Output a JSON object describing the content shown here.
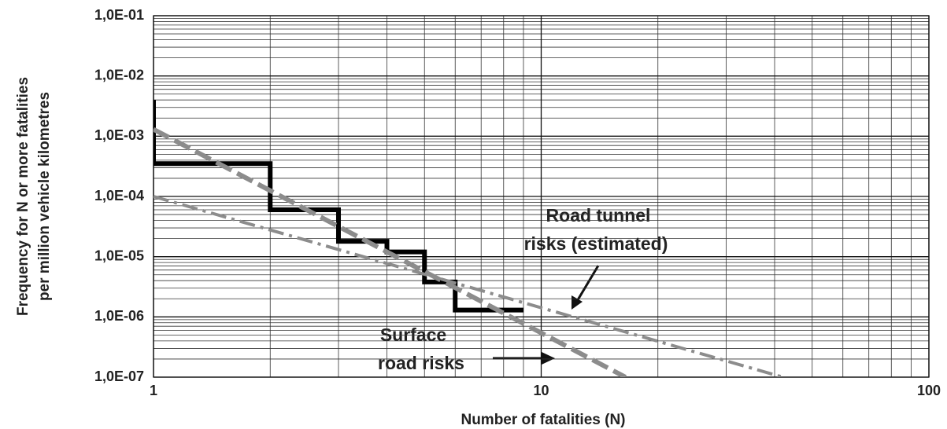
{
  "chart_data": {
    "type": "line",
    "xlabel": "Number of fatalities (N)",
    "ylabel": [
      "Frequency for N or more fatalities",
      "per million vehicle kilometres"
    ],
    "xscale": "log",
    "yscale": "log",
    "grid": true,
    "xlim": [
      1,
      100
    ],
    "xticks": [
      1,
      10,
      100
    ],
    "ylim": [
      1e-07,
      0.1
    ],
    "yticks": [
      {
        "value": 1e-07,
        "label": "1,0E-07"
      },
      {
        "value": 1e-06,
        "label": "1,0E-06"
      },
      {
        "value": 1e-05,
        "label": "1,0E-05"
      },
      {
        "value": 0.0001,
        "label": "1,0E-04"
      },
      {
        "value": 0.001,
        "label": "1,0E-03"
      },
      {
        "value": 0.01,
        "label": "1,0E-02"
      },
      {
        "value": 0.1,
        "label": "1,0E-01"
      }
    ],
    "series": [
      {
        "color": "#000000",
        "style": "solid",
        "x": [
          1,
          1,
          2,
          2,
          3,
          3,
          4,
          4,
          5,
          5,
          6,
          6,
          9
        ],
        "values": [
          0.004,
          0.00035,
          0.00035,
          6e-05,
          6e-05,
          1.8e-05,
          1.8e-05,
          1.2e-05,
          1.2e-05,
          3.8e-06,
          3.8e-06,
          1.3e-06,
          1.3e-06
        ]
      },
      {
        "color": "#8c8c8c",
        "style": "dashed",
        "x": [
          1,
          16.5
        ],
        "values": [
          0.0013,
          1e-07
        ]
      },
      {
        "color": "#8c8c8c",
        "style": "dashdot",
        "x": [
          1,
          42
        ],
        "values": [
          0.0001,
          1e-07
        ]
      }
    ],
    "annotations": [
      {
        "lines": [
          "Road tunnel",
          "risks (estimated)"
        ]
      },
      {
        "lines": [
          "Surface",
          "road risks"
        ]
      }
    ]
  }
}
